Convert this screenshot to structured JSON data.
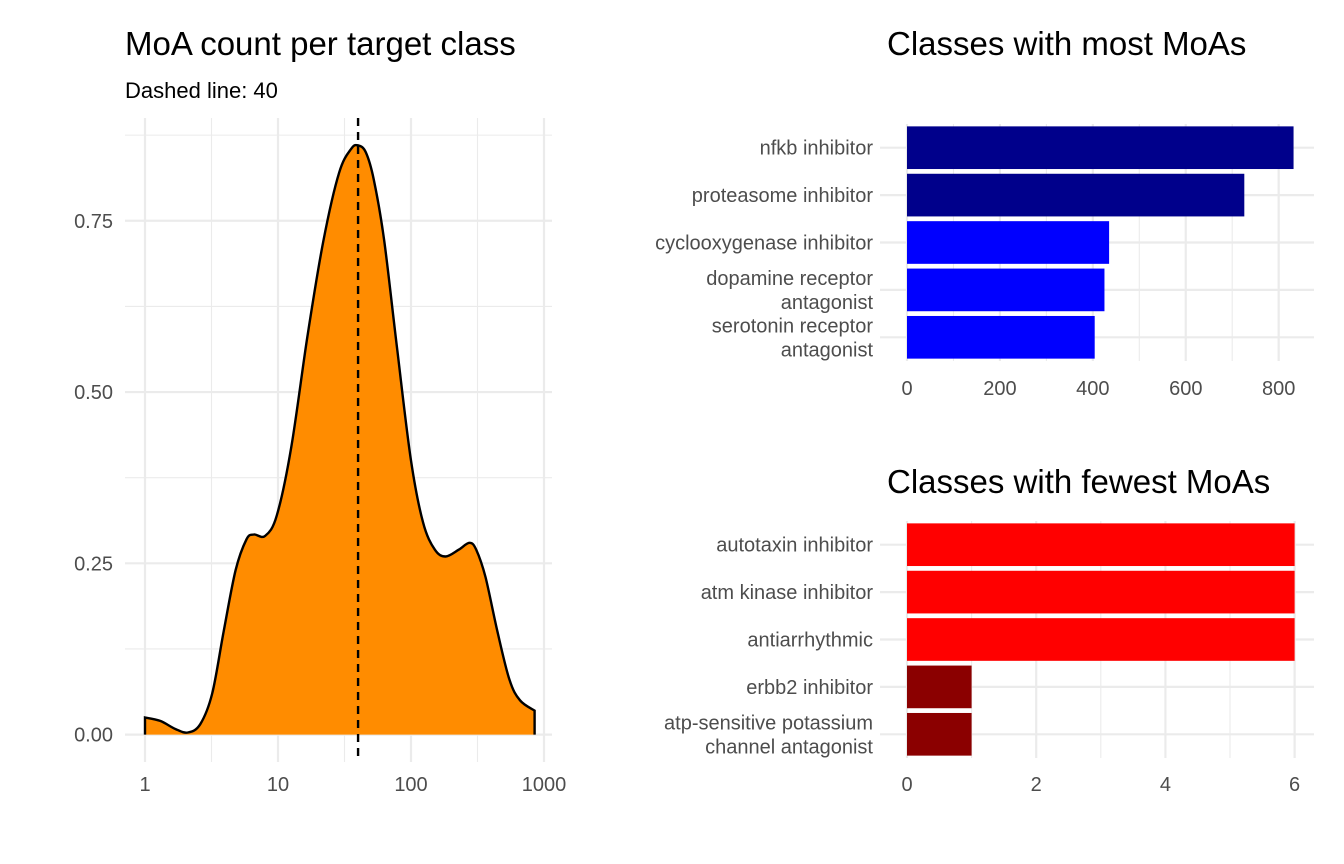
{
  "chart_data": [
    {
      "type": "area",
      "title": "MoA count per target class",
      "subtitle": "Dashed line: 40",
      "xscale": "log10",
      "xlim": [
        1,
        850
      ],
      "ylim": [
        -0.04,
        0.9
      ],
      "x_ticks": [
        1,
        10,
        100,
        1000
      ],
      "x_tick_labels": [
        "1",
        "10",
        "100",
        "1000"
      ],
      "y_ticks": [
        0,
        0.25,
        0.5,
        0.75
      ],
      "y_tick_labels": [
        "0.00",
        "0.25",
        "0.50",
        "0.75"
      ],
      "reference_line": 40,
      "fill_color": "#FF8C00",
      "x": [
        1,
        1.3,
        1.7,
        2.1,
        2.6,
        3.2,
        3.9,
        4.8,
        5.8,
        6.6,
        8.0,
        9.8,
        12.6,
        16.6,
        21.9,
        28.8,
        35.5,
        40,
        45.7,
        52.5,
        63,
        79,
        100,
        123,
        151,
        182,
        229,
        275,
        309,
        363,
        447,
        550,
        660,
        850
      ],
      "density": [
        0.025,
        0.02,
        0.008,
        0.003,
        0.015,
        0.06,
        0.15,
        0.24,
        0.285,
        0.292,
        0.29,
        0.32,
        0.42,
        0.58,
        0.72,
        0.82,
        0.855,
        0.86,
        0.85,
        0.81,
        0.72,
        0.56,
        0.4,
        0.31,
        0.27,
        0.26,
        0.27,
        0.28,
        0.27,
        0.23,
        0.15,
        0.08,
        0.05,
        0.035
      ]
    },
    {
      "type": "bar",
      "orientation": "horizontal",
      "title": "Classes with most MoAs",
      "categories": [
        "nfkb inhibitor",
        "proteasome inhibitor",
        "cyclooxygenase inhibitor",
        "dopamine receptor antagonist",
        "serotonin receptor antagonist"
      ],
      "category_lines": [
        [
          "nfkb inhibitor"
        ],
        [
          "proteasome inhibitor"
        ],
        [
          "cyclooxygenase inhibitor"
        ],
        [
          "dopamine receptor",
          "antagonist"
        ],
        [
          "serotonin receptor",
          "antagonist"
        ]
      ],
      "values": [
        832,
        726,
        435,
        425,
        404
      ],
      "colors": [
        "#00008B",
        "#00008B",
        "#0000FF",
        "#0000FF",
        "#0000FF"
      ],
      "xlim": [
        0,
        876
      ],
      "x_ticks": [
        0,
        200,
        400,
        600,
        800
      ],
      "x_tick_labels": [
        "0",
        "200",
        "400",
        "600",
        "800"
      ]
    },
    {
      "type": "bar",
      "orientation": "horizontal",
      "title": "Classes with fewest MoAs",
      "categories": [
        "autotaxin inhibitor",
        "atm kinase inhibitor",
        "antiarrhythmic",
        "erbb2 inhibitor",
        "atp-sensitive potassium channel antagonist"
      ],
      "category_lines": [
        [
          "autotaxin inhibitor"
        ],
        [
          "atm kinase inhibitor"
        ],
        [
          "antiarrhythmic"
        ],
        [
          "erbb2 inhibitor"
        ],
        [
          "atp-sensitive potassium",
          "channel antagonist"
        ]
      ],
      "values": [
        6,
        6,
        6,
        1,
        1
      ],
      "colors": [
        "#FF0000",
        "#FF0000",
        "#FF0000",
        "#8B0000",
        "#8B0000"
      ],
      "xlim": [
        0,
        6.3
      ],
      "x_ticks": [
        0,
        2,
        4,
        6
      ],
      "x_tick_labels": [
        "0",
        "2",
        "4",
        "6"
      ]
    }
  ]
}
